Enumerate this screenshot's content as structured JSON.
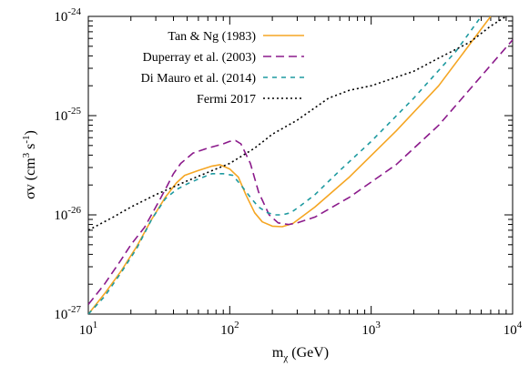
{
  "chart_data": {
    "type": "line",
    "title": "",
    "xlabel": "m_χ (GeV)",
    "xlabel_parts": {
      "base": "m",
      "sub": "χ",
      "rest": " (GeV)"
    },
    "ylabel": "σv (cm^3 s^-1)",
    "ylabel_parts": {
      "pre": "σv (cm",
      "sup1": "3",
      "mid": " s",
      "sup2": "-1",
      "post": ")"
    },
    "x_scale": "log",
    "y_scale": "log",
    "xlim": [
      10,
      10000
    ],
    "ylim": [
      1e-27,
      1e-24
    ],
    "grid": false,
    "legend_position": "top-right",
    "x_ticks": [
      {
        "value": 10,
        "base": "10",
        "exp": "1"
      },
      {
        "value": 100,
        "base": "10",
        "exp": "2"
      },
      {
        "value": 1000,
        "base": "10",
        "exp": "3"
      },
      {
        "value": 10000,
        "base": "10",
        "exp": "4"
      }
    ],
    "y_ticks": [
      {
        "value": 1e-27,
        "base": "10",
        "exp": "-27"
      },
      {
        "value": 1e-26,
        "base": "10",
        "exp": "-26"
      },
      {
        "value": 1e-25,
        "base": "10",
        "exp": "-25"
      },
      {
        "value": 1e-24,
        "base": "10",
        "exp": "-24"
      }
    ],
    "series": [
      {
        "name": "Tan & Ng (1983)",
        "color": "#f5a623",
        "dash": "solid",
        "x": [
          10,
          13,
          17,
          22,
          28,
          35,
          42,
          48,
          60,
          75,
          85,
          100,
          115,
          130,
          150,
          170,
          200,
          235,
          280,
          400,
          700,
          1500,
          3000,
          7000
        ],
        "y": [
          1e-27,
          1.6e-27,
          2.7e-27,
          4.8e-27,
          9e-27,
          1.5e-26,
          2.1e-26,
          2.5e-26,
          2.8e-26,
          3.1e-26,
          3.2e-26,
          2.9e-26,
          2.4e-26,
          1.6e-26,
          1.05e-26,
          8.5e-27,
          7.7e-27,
          7.6e-27,
          8.2e-27,
          1.2e-26,
          2.4e-26,
          7e-26,
          2e-25,
          1e-24
        ]
      },
      {
        "name": "Duperray et al. (2003)",
        "color": "#8b1a8b",
        "dash": "long-dash",
        "x": [
          10,
          13,
          17,
          20,
          25,
          30,
          35,
          40,
          45,
          55,
          70,
          90,
          100,
          110,
          120,
          140,
          160,
          190,
          220,
          260,
          300,
          400,
          700,
          1500,
          3000,
          10000
        ],
        "y": [
          1.25e-27,
          2e-27,
          3.5e-27,
          5e-27,
          7.5e-27,
          1.2e-26,
          1.8e-26,
          2.6e-26,
          3.3e-26,
          4.2e-26,
          4.7e-26,
          5.2e-26,
          5.5e-26,
          5.6e-26,
          5.2e-26,
          3.3e-26,
          1.7e-26,
          1e-26,
          8.3e-27,
          8e-27,
          8.3e-27,
          9.5e-27,
          1.5e-26,
          3.2e-26,
          8e-26,
          5.8e-25
        ]
      },
      {
        "name": "Di Mauro et al. (2014)",
        "color": "#1e9aa0",
        "dash": "short-dash",
        "x": [
          10,
          13,
          17,
          22,
          28,
          35,
          42,
          50,
          60,
          75,
          90,
          105,
          120,
          140,
          160,
          185,
          210,
          235,
          270,
          320,
          400,
          600,
          1000,
          2000,
          4000,
          6000
        ],
        "y": [
          1e-27,
          1.5e-27,
          2.6e-27,
          4.6e-27,
          9e-27,
          1.45e-26,
          1.8e-26,
          2.05e-26,
          2.3e-26,
          2.6e-26,
          2.6e-26,
          2.5e-26,
          2e-26,
          1.5e-26,
          1.2e-26,
          1.05e-26,
          1e-26,
          1e-26,
          1.05e-26,
          1.25e-26,
          1.6e-26,
          2.8e-26,
          5.5e-26,
          1.5e-25,
          4.5e-25,
          1e-24
        ]
      },
      {
        "name": "Fermi 2017",
        "color": "#000000",
        "dash": "dotted",
        "x": [
          10,
          15,
          20,
          30,
          50,
          80,
          100,
          150,
          200,
          300,
          500,
          700,
          1000,
          2000,
          3000,
          5000,
          7000,
          9000
        ],
        "y": [
          7e-27,
          9.5e-27,
          1.2e-26,
          1.6e-26,
          2.2e-26,
          2.9e-26,
          3.3e-26,
          4.7e-26,
          6.5e-26,
          9e-26,
          1.5e-25,
          1.8e-25,
          2e-25,
          2.8e-25,
          3.8e-25,
          5.5e-25,
          8e-25,
          1e-24
        ]
      }
    ]
  }
}
